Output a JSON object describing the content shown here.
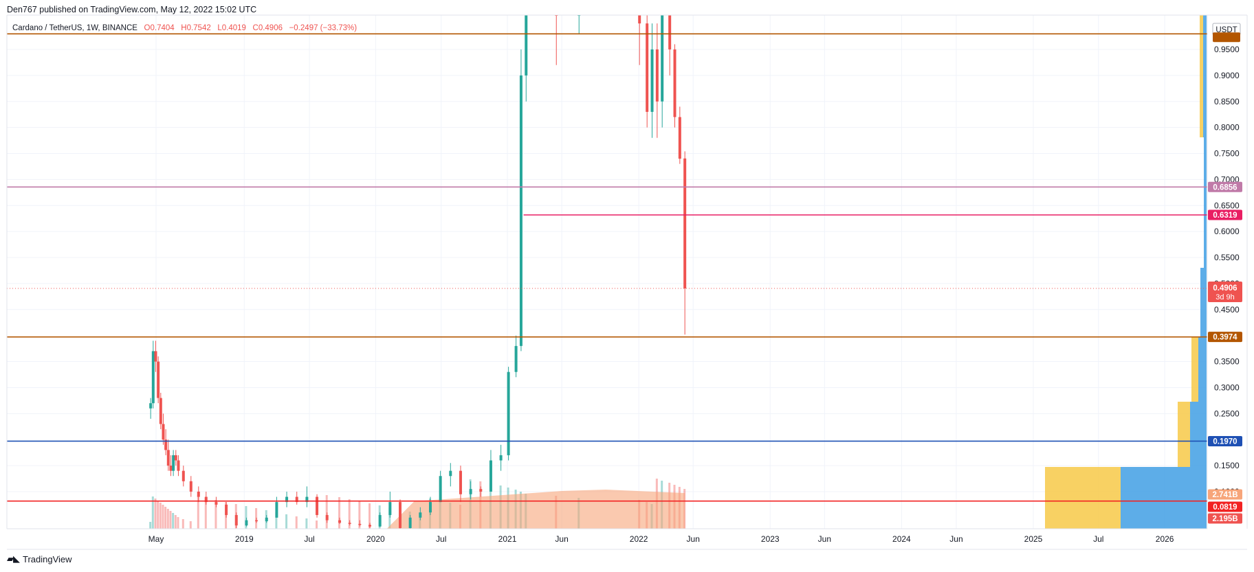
{
  "header": {
    "publisher": "Den767 published on TradingView.com, May 12, 2022 15:02 UTC"
  },
  "legend": {
    "symbol": "Cardano / TetherUS, 1W, BINANCE",
    "open": "O0.7404",
    "high": "H0.7542",
    "low": "L0.4019",
    "close": "C0.4906",
    "change": "−0.2497 (−33.73%)"
  },
  "footer": {
    "brand": "TradingView"
  },
  "colors": {
    "up": "#26a69a",
    "down": "#ef5350",
    "orange_line": "#b35600",
    "purple_line": "#c07aa8",
    "pink_line": "#e91e63",
    "blue_line": "#1e50b4",
    "red_line": "#f22222",
    "vp_yellow": "#f7c948",
    "vp_blue": "#4ba4e6",
    "volume_ma": "#f7a57a"
  },
  "chart_data": {
    "type": "candlestick",
    "currency": "USDT",
    "x_ticks": [
      "May",
      "2019",
      "Jul",
      "2020",
      "Jul",
      "2021",
      "Jun",
      "2022",
      "Jun",
      "2023",
      "Jun",
      "2024",
      "Jun",
      "2025",
      "Jul",
      "2026"
    ],
    "y_ticks": [
      "0.9500",
      "0.9000",
      "0.8500",
      "0.8000",
      "0.7500",
      "0.7000",
      "0.6500",
      "0.6000",
      "0.5500",
      "0.5000",
      "0.4500",
      "0.3500",
      "0.3000",
      "0.2500",
      "0.1500",
      "0.1000"
    ],
    "horizontal_levels": [
      {
        "price": 0.98,
        "label": "0.9800",
        "color": "#b35600"
      },
      {
        "price": 0.6856,
        "label": "0.6856",
        "color": "#c07aa8"
      },
      {
        "price": 0.6319,
        "label": "0.6319",
        "color": "#e91e63"
      },
      {
        "price": 0.3974,
        "label": "0.3974",
        "color": "#b35600"
      },
      {
        "price": 0.197,
        "label": "0.1970",
        "color": "#1e50b4"
      },
      {
        "price": 0.0819,
        "label": "0.0819",
        "color": "#f22222"
      }
    ],
    "last_price": {
      "price": 0.4906,
      "label": "0.4906",
      "countdown": "3d 9h"
    },
    "volume_labels": [
      "2.741B",
      "2.195B"
    ],
    "ohlc_series": [
      {
        "date": "2018-04-16",
        "open": 0.26,
        "high": 0.28,
        "low": 0.24,
        "close": 0.27
      },
      {
        "date": "2018-04-23",
        "open": 0.27,
        "high": 0.39,
        "low": 0.26,
        "close": 0.37
      },
      {
        "date": "2018-04-30",
        "open": 0.37,
        "high": 0.39,
        "low": 0.33,
        "close": 0.35
      },
      {
        "date": "2018-05-07",
        "open": 0.35,
        "high": 0.36,
        "low": 0.27,
        "close": 0.28
      },
      {
        "date": "2018-05-14",
        "open": 0.28,
        "high": 0.29,
        "low": 0.22,
        "close": 0.23
      },
      {
        "date": "2018-05-21",
        "open": 0.23,
        "high": 0.25,
        "low": 0.19,
        "close": 0.2
      },
      {
        "date": "2018-05-28",
        "open": 0.2,
        "high": 0.22,
        "low": 0.17,
        "close": 0.18
      },
      {
        "date": "2018-06-04",
        "open": 0.18,
        "high": 0.2,
        "low": 0.14,
        "close": 0.15
      },
      {
        "date": "2018-06-11",
        "open": 0.15,
        "high": 0.17,
        "low": 0.13,
        "close": 0.14
      },
      {
        "date": "2018-06-18",
        "open": 0.14,
        "high": 0.18,
        "low": 0.13,
        "close": 0.17
      },
      {
        "date": "2018-06-25",
        "open": 0.17,
        "high": 0.18,
        "low": 0.15,
        "close": 0.16
      },
      {
        "date": "2018-07-02",
        "open": 0.16,
        "high": 0.17,
        "low": 0.13,
        "close": 0.14
      },
      {
        "date": "2018-07-16",
        "open": 0.14,
        "high": 0.15,
        "low": 0.11,
        "close": 0.12
      },
      {
        "date": "2018-08-06",
        "open": 0.12,
        "high": 0.13,
        "low": 0.09,
        "close": 0.1
      },
      {
        "date": "2018-08-27",
        "open": 0.1,
        "high": 0.11,
        "low": 0.08,
        "close": 0.09
      },
      {
        "date": "2018-09-17",
        "open": 0.09,
        "high": 0.1,
        "low": 0.075,
        "close": 0.08
      },
      {
        "date": "2018-10-15",
        "open": 0.08,
        "high": 0.09,
        "low": 0.07,
        "close": 0.075
      },
      {
        "date": "2018-11-12",
        "open": 0.075,
        "high": 0.08,
        "low": 0.05,
        "close": 0.055
      },
      {
        "date": "2018-12-10",
        "open": 0.055,
        "high": 0.06,
        "low": 0.03,
        "close": 0.035
      },
      {
        "date": "2019-01-07",
        "open": 0.035,
        "high": 0.05,
        "low": 0.033,
        "close": 0.045
      },
      {
        "date": "2019-02-04",
        "open": 0.045,
        "high": 0.05,
        "low": 0.04,
        "close": 0.043
      },
      {
        "date": "2019-03-04",
        "open": 0.043,
        "high": 0.055,
        "low": 0.04,
        "close": 0.05
      },
      {
        "date": "2019-04-01",
        "open": 0.05,
        "high": 0.09,
        "low": 0.05,
        "close": 0.08
      },
      {
        "date": "2019-04-29",
        "open": 0.08,
        "high": 0.1,
        "low": 0.07,
        "close": 0.09
      },
      {
        "date": "2019-05-27",
        "open": 0.09,
        "high": 0.1,
        "low": 0.075,
        "close": 0.08
      },
      {
        "date": "2019-06-24",
        "open": 0.08,
        "high": 0.11,
        "low": 0.07,
        "close": 0.09
      },
      {
        "date": "2019-07-22",
        "open": 0.09,
        "high": 0.095,
        "low": 0.05,
        "close": 0.055
      },
      {
        "date": "2019-08-19",
        "open": 0.055,
        "high": 0.06,
        "low": 0.04,
        "close": 0.045
      },
      {
        "date": "2019-09-23",
        "open": 0.045,
        "high": 0.05,
        "low": 0.038,
        "close": 0.04
      },
      {
        "date": "2019-10-21",
        "open": 0.04,
        "high": 0.045,
        "low": 0.035,
        "close": 0.038
      },
      {
        "date": "2019-11-18",
        "open": 0.038,
        "high": 0.045,
        "low": 0.033,
        "close": 0.036
      },
      {
        "date": "2019-12-16",
        "open": 0.036,
        "high": 0.04,
        "low": 0.03,
        "close": 0.033
      },
      {
        "date": "2020-01-13",
        "open": 0.033,
        "high": 0.06,
        "low": 0.032,
        "close": 0.055
      },
      {
        "date": "2020-02-10",
        "open": 0.055,
        "high": 0.1,
        "low": 0.05,
        "close": 0.08
      },
      {
        "date": "2020-03-09",
        "open": 0.08,
        "high": 0.085,
        "low": 0.02,
        "close": 0.03
      },
      {
        "date": "2020-04-06",
        "open": 0.03,
        "high": 0.055,
        "low": 0.028,
        "close": 0.05
      },
      {
        "date": "2020-05-04",
        "open": 0.05,
        "high": 0.07,
        "low": 0.045,
        "close": 0.06
      },
      {
        "date": "2020-06-01",
        "open": 0.06,
        "high": 0.09,
        "low": 0.055,
        "close": 0.08
      },
      {
        "date": "2020-06-29",
        "open": 0.08,
        "high": 0.14,
        "low": 0.08,
        "close": 0.13
      },
      {
        "date": "2020-07-27",
        "open": 0.13,
        "high": 0.155,
        "low": 0.11,
        "close": 0.14
      },
      {
        "date": "2020-08-24",
        "open": 0.14,
        "high": 0.15,
        "low": 0.08,
        "close": 0.095
      },
      {
        "date": "2020-09-21",
        "open": 0.095,
        "high": 0.12,
        "low": 0.085,
        "close": 0.105
      },
      {
        "date": "2020-10-19",
        "open": 0.105,
        "high": 0.11,
        "low": 0.09,
        "close": 0.1
      },
      {
        "date": "2020-11-16",
        "open": 0.1,
        "high": 0.18,
        "low": 0.1,
        "close": 0.16
      },
      {
        "date": "2020-12-14",
        "open": 0.16,
        "high": 0.19,
        "low": 0.14,
        "close": 0.17
      },
      {
        "date": "2021-01-04",
        "open": 0.17,
        "high": 0.34,
        "low": 0.16,
        "close": 0.33
      },
      {
        "date": "2021-01-25",
        "open": 0.33,
        "high": 0.4,
        "low": 0.32,
        "close": 0.38
      },
      {
        "date": "2021-02-08",
        "open": 0.38,
        "high": 0.95,
        "low": 0.37,
        "close": 0.9
      },
      {
        "date": "2021-02-22",
        "open": 0.9,
        "high": 1.2,
        "low": 0.85,
        "close": 1.2
      },
      {
        "date": "2021-05-17",
        "open": 1.2,
        "high": 1.3,
        "low": 0.92,
        "close": 1.1
      },
      {
        "date": "2021-07-19",
        "open": 1.1,
        "high": 1.3,
        "low": 0.98,
        "close": 1.1
      },
      {
        "date": "2022-01-03",
        "open": 1.2,
        "high": 1.3,
        "low": 0.92,
        "close": 1.0
      },
      {
        "date": "2022-01-24",
        "open": 1.0,
        "high": 1.05,
        "low": 0.8,
        "close": 0.83
      },
      {
        "date": "2022-02-07",
        "open": 0.83,
        "high": 1.0,
        "low": 0.78,
        "close": 0.95
      },
      {
        "date": "2022-02-21",
        "open": 0.95,
        "high": 1.0,
        "low": 0.78,
        "close": 0.85
      },
      {
        "date": "2022-03-07",
        "open": 0.85,
        "high": 1.2,
        "low": 0.8,
        "close": 1.15
      },
      {
        "date": "2022-03-28",
        "open": 1.15,
        "high": 1.24,
        "low": 0.9,
        "close": 0.95
      },
      {
        "date": "2022-04-11",
        "open": 0.95,
        "high": 0.96,
        "low": 0.8,
        "close": 0.82
      },
      {
        "date": "2022-04-25",
        "open": 0.82,
        "high": 0.84,
        "low": 0.73,
        "close": 0.74
      },
      {
        "date": "2022-05-09",
        "open": 0.7404,
        "high": 0.7542,
        "low": 0.4019,
        "close": 0.4906
      }
    ]
  }
}
